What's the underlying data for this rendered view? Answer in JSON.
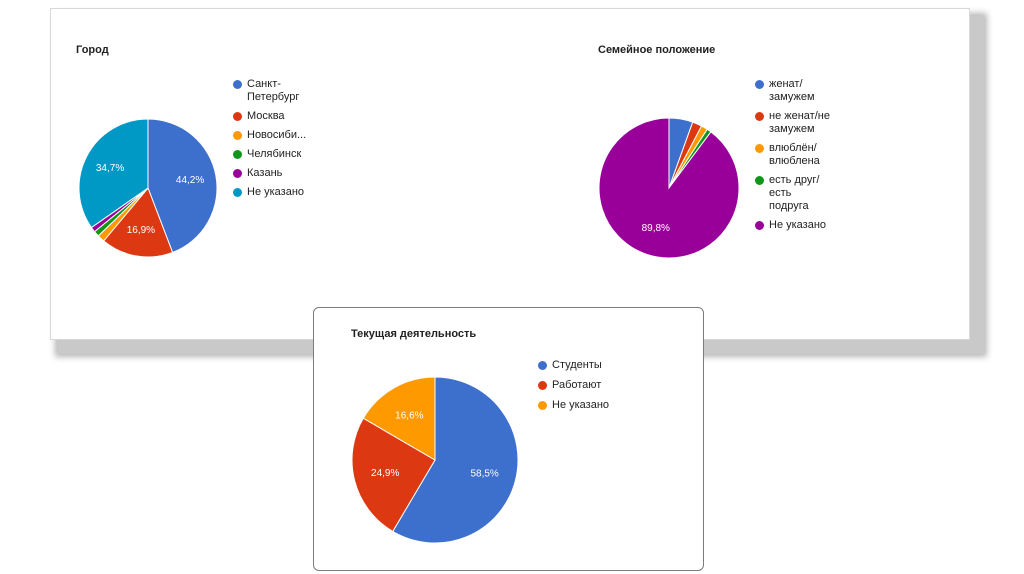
{
  "chart_data": [
    {
      "type": "pie",
      "title": "Город",
      "categories": [
        "Санкт-\nПетербург",
        "Москва",
        "Новосиби...",
        "Челябинск",
        "Казань",
        "Не указано"
      ],
      "values": [
        44.2,
        16.9,
        1.7,
        1.3,
        1.2,
        34.7
      ],
      "data_labels": [
        "44,2%",
        "16,9%",
        "",
        "",
        "",
        "34,7%"
      ],
      "colors": [
        "#3d6fcc",
        "#dc3912",
        "#ff9900",
        "#109618",
        "#990099",
        "#0099c6"
      ],
      "legend": "right"
    },
    {
      "type": "pie",
      "title": "Семейное положение",
      "categories": [
        "женат/\nзамужем",
        "не женат/не\nзамужем",
        "влюблён/\nвлюблена",
        "есть друг/\nесть\nподруга",
        "Не указано"
      ],
      "values": [
        5.5,
        2.2,
        1.5,
        1.0,
        89.8
      ],
      "data_labels": [
        "",
        "",
        "",
        "",
        "89,8%"
      ],
      "colors": [
        "#3d6fcc",
        "#dc3912",
        "#ff9900",
        "#109618",
        "#990099"
      ],
      "legend": "right"
    },
    {
      "type": "pie",
      "title": "Текущая деятельность",
      "categories": [
        "Студенты",
        "Работают",
        "Не указано"
      ],
      "values": [
        58.5,
        24.9,
        16.6
      ],
      "data_labels": [
        "58,5%",
        "24,9%",
        "16,6%"
      ],
      "colors": [
        "#3d6fcc",
        "#dc3912",
        "#ff9900"
      ],
      "legend": "right"
    }
  ]
}
